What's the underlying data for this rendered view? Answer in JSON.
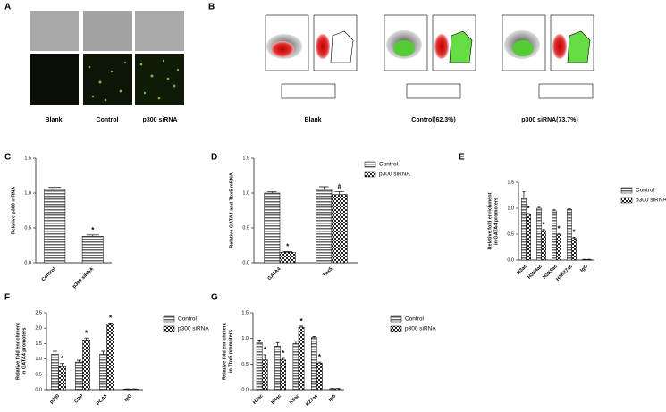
{
  "image_panels": [
    {
      "panel": "A",
      "labels": [
        "Blank",
        "Control",
        "p300 siRNA"
      ]
    },
    {
      "panel": "B",
      "labels": [
        "Blank",
        "Control(62.3%)",
        "p300 siRNA(73.7%)"
      ]
    }
  ],
  "chart_data": [
    {
      "type": "bar",
      "panel": "C",
      "ylabel": [
        "Relative p300 mRNA"
      ],
      "categories": [
        "Control",
        "p300 siRNA"
      ],
      "series": [
        {
          "pattern": "stripes",
          "values": [
            1.05,
            0.38
          ],
          "errors": [
            0.03,
            0.02
          ],
          "markers": [
            null,
            "*"
          ]
        }
      ],
      "ylim": [
        0,
        1.5
      ],
      "yticks": [
        {
          "value": 0,
          "label": "0.0"
        },
        {
          "value": 0.5,
          "label": "0.5"
        },
        {
          "value": 1,
          "label": "1.0"
        },
        {
          "value": 1.5,
          "label": "1.5"
        }
      ]
    },
    {
      "type": "bar",
      "panel": "D",
      "ylabel": [
        "Relative GATA4 and Tbx5 mRNA"
      ],
      "categories": [
        "GATA4",
        "Tbx5"
      ],
      "series": [
        {
          "name": "Control",
          "pattern": "stripes",
          "values": [
            1.0,
            1.05
          ],
          "errors": [
            0.02,
            0.04
          ],
          "markers": [
            null,
            null
          ]
        },
        {
          "name": "p300 siRNA",
          "pattern": "checker",
          "values": [
            0.15,
            0.98
          ],
          "errors": [
            0.01,
            0.04
          ],
          "markers": [
            "*",
            "#"
          ]
        }
      ],
      "ylim": [
        0,
        1.5
      ],
      "yticks": [
        {
          "value": 0,
          "label": "0.0"
        },
        {
          "value": 0.5,
          "label": "0.5"
        },
        {
          "value": 1,
          "label": "1.0"
        },
        {
          "value": 1.5,
          "label": "1.5"
        }
      ]
    },
    {
      "type": "bar",
      "panel": "E",
      "ylabel": [
        "Relative fold enrichment",
        "in GATA4 promoters"
      ],
      "categories": [
        "H3ac",
        "H3K4ac",
        "H3K9ac",
        "H3K27ac",
        "IgG"
      ],
      "series": [
        {
          "name": "Control",
          "pattern": "stripes",
          "values": [
            1.2,
            1.0,
            0.95,
            0.98,
            0.01
          ],
          "errors": [
            0.12,
            0.02,
            0.02,
            0.01,
            0.005
          ],
          "markers": [
            null,
            null,
            null,
            null,
            null
          ]
        },
        {
          "name": "p300 siRNA",
          "pattern": "checker",
          "values": [
            0.88,
            0.57,
            0.49,
            0.42,
            0.01
          ],
          "errors": [
            0.02,
            0.02,
            0.02,
            0.02,
            0.005
          ],
          "markers": [
            "*",
            "*",
            "*",
            "*",
            null
          ]
        }
      ],
      "ylim": [
        0,
        1.5
      ],
      "yticks": [
        {
          "value": 0,
          "label": "0.0"
        },
        {
          "value": 0.5,
          "label": "0.5"
        },
        {
          "value": 1,
          "label": "1.0"
        },
        {
          "value": 1.5,
          "label": "1.5"
        }
      ]
    },
    {
      "type": "bar",
      "panel": "F",
      "ylabel": [
        "Relative fold enrichment",
        "in GATA4 promoters"
      ],
      "categories": [
        "p300",
        "CBP",
        "PCAF",
        "IgG"
      ],
      "series": [
        {
          "name": "Control",
          "pattern": "stripes",
          "values": [
            1.15,
            0.9,
            1.15,
            0.02
          ],
          "errors": [
            0.1,
            0.06,
            0.1,
            0.005
          ],
          "markers": [
            null,
            null,
            null,
            null
          ]
        },
        {
          "name": "p300 siRNA",
          "pattern": "checker",
          "values": [
            0.75,
            1.62,
            2.12,
            0.02
          ],
          "errors": [
            0.1,
            0.06,
            0.05,
            0.005
          ],
          "markers": [
            "*",
            "*",
            "*",
            null
          ]
        }
      ],
      "ylim": [
        0,
        2.5
      ],
      "yticks": [
        {
          "value": 0,
          "label": "0.0"
        },
        {
          "value": 0.5,
          "label": "0.5"
        },
        {
          "value": 1,
          "label": "1.0"
        },
        {
          "value": 1.5,
          "label": "1.5"
        },
        {
          "value": 2,
          "label": "2.0"
        },
        {
          "value": 2.5,
          "label": "2.5"
        }
      ]
    },
    {
      "type": "bar",
      "panel": "G",
      "ylabel": [
        "Relative fold enrichment",
        "in Tbx5 promoters"
      ],
      "categories": [
        "H3ac",
        "K4ac",
        "K9ac",
        "K27ac",
        "IgG"
      ],
      "series": [
        {
          "name": "Control",
          "pattern": "stripes",
          "values": [
            0.92,
            0.85,
            0.9,
            1.02,
            0.02
          ],
          "errors": [
            0.05,
            0.07,
            0.05,
            0.02,
            0.005
          ],
          "markers": [
            null,
            null,
            null,
            null,
            null
          ]
        },
        {
          "name": "p300 siRNA",
          "pattern": "checker",
          "values": [
            0.58,
            0.58,
            1.22,
            0.52,
            0.02
          ],
          "errors": [
            0.1,
            0.03,
            0.02,
            0.02,
            0.005
          ],
          "markers": [
            "*",
            "*",
            "*",
            "*",
            null
          ]
        }
      ],
      "ylim": [
        0,
        1.5
      ],
      "yticks": [
        {
          "value": 0,
          "label": "0.0"
        },
        {
          "value": 0.5,
          "label": "0.5"
        },
        {
          "value": 1,
          "label": "1.0"
        },
        {
          "value": 1.5,
          "label": "1.5"
        }
      ]
    }
  ]
}
